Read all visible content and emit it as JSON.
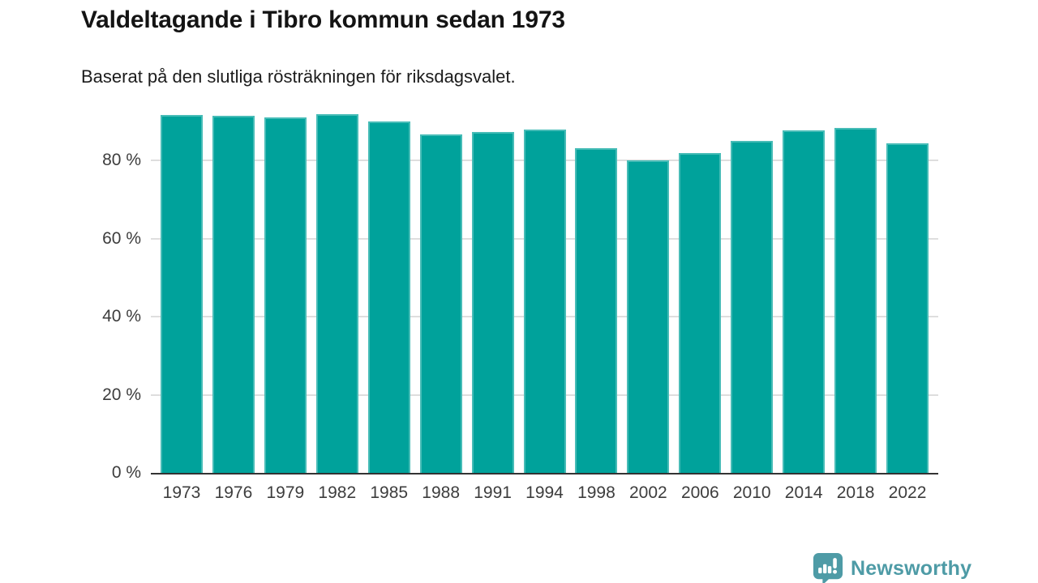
{
  "chart_data": {
    "type": "bar",
    "title": "Valdeltagande i Tibro kommun sedan 1973",
    "subtitle": "Baserat på den slutliga rösträkningen för riksdagsvalet.",
    "categories": [
      "1973",
      "1976",
      "1979",
      "1982",
      "1985",
      "1988",
      "1991",
      "1994",
      "1998",
      "2002",
      "2006",
      "2010",
      "2014",
      "2018",
      "2022"
    ],
    "values": [
      91.7,
      91.5,
      91.0,
      92.0,
      90.1,
      86.8,
      87.3,
      87.9,
      83.1,
      80.1,
      82.0,
      85.1,
      87.8,
      88.4,
      84.5
    ],
    "unit": "%",
    "xlabel": "",
    "ylabel": "",
    "ylim": [
      0,
      100
    ],
    "y_ticks": [
      {
        "value": 0,
        "label": "0 %"
      },
      {
        "value": 20,
        "label": "20 %"
      },
      {
        "value": 40,
        "label": "40 %"
      },
      {
        "value": 60,
        "label": "60 %"
      },
      {
        "value": 80,
        "label": "80 %"
      }
    ],
    "grid": true,
    "legend_position": "none",
    "bar_color": "#00a29b",
    "gridline_color": "#dedede",
    "axis_line_color": "#333333",
    "tick_label_color": "#3d3d3d"
  },
  "footer": {
    "brand": "Newsworthy",
    "brand_color": "#4e9ba6",
    "logo_icon": "newsworthy-speech-bubble-barchart-icon"
  }
}
